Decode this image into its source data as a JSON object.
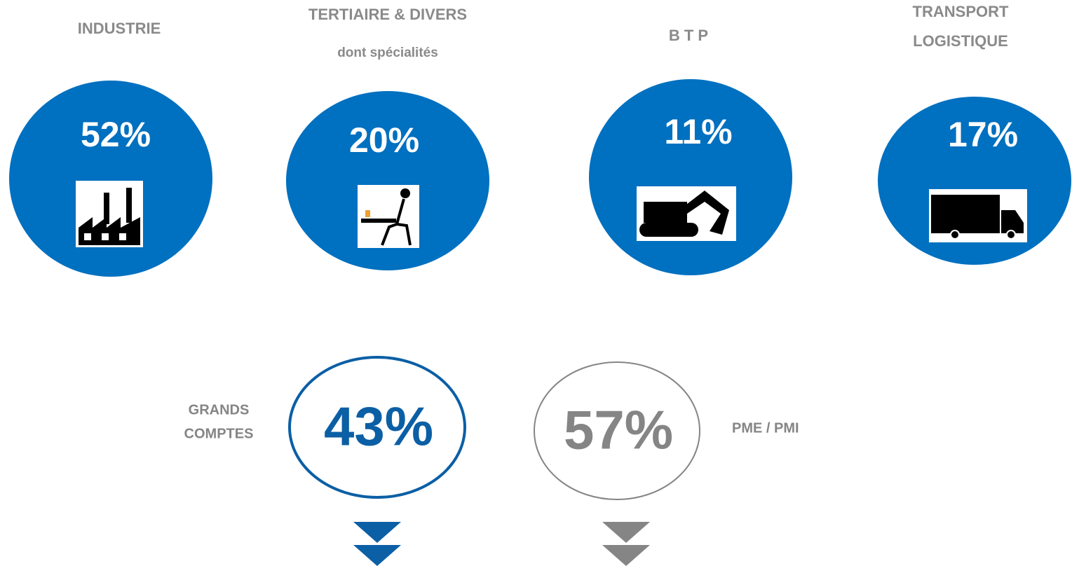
{
  "sectors": [
    {
      "label": [
        "INDUSTRIE"
      ],
      "value": "52%"
    },
    {
      "label": [
        "TERTIAIRE & DIVERS",
        "dont spécialités"
      ],
      "value": "20%"
    },
    {
      "label": [
        "B T P"
      ],
      "value": "11%"
    },
    {
      "label": [
        "TRANSPORT",
        "LOGISTIQUE"
      ],
      "value": "17%"
    }
  ],
  "clients": [
    {
      "label": [
        "GRANDS",
        "COMPTES"
      ],
      "value": "43%",
      "color": "#0b5fa5"
    },
    {
      "label": [
        "PME / PMI"
      ],
      "value": "57%",
      "color": "#858585"
    }
  ]
}
